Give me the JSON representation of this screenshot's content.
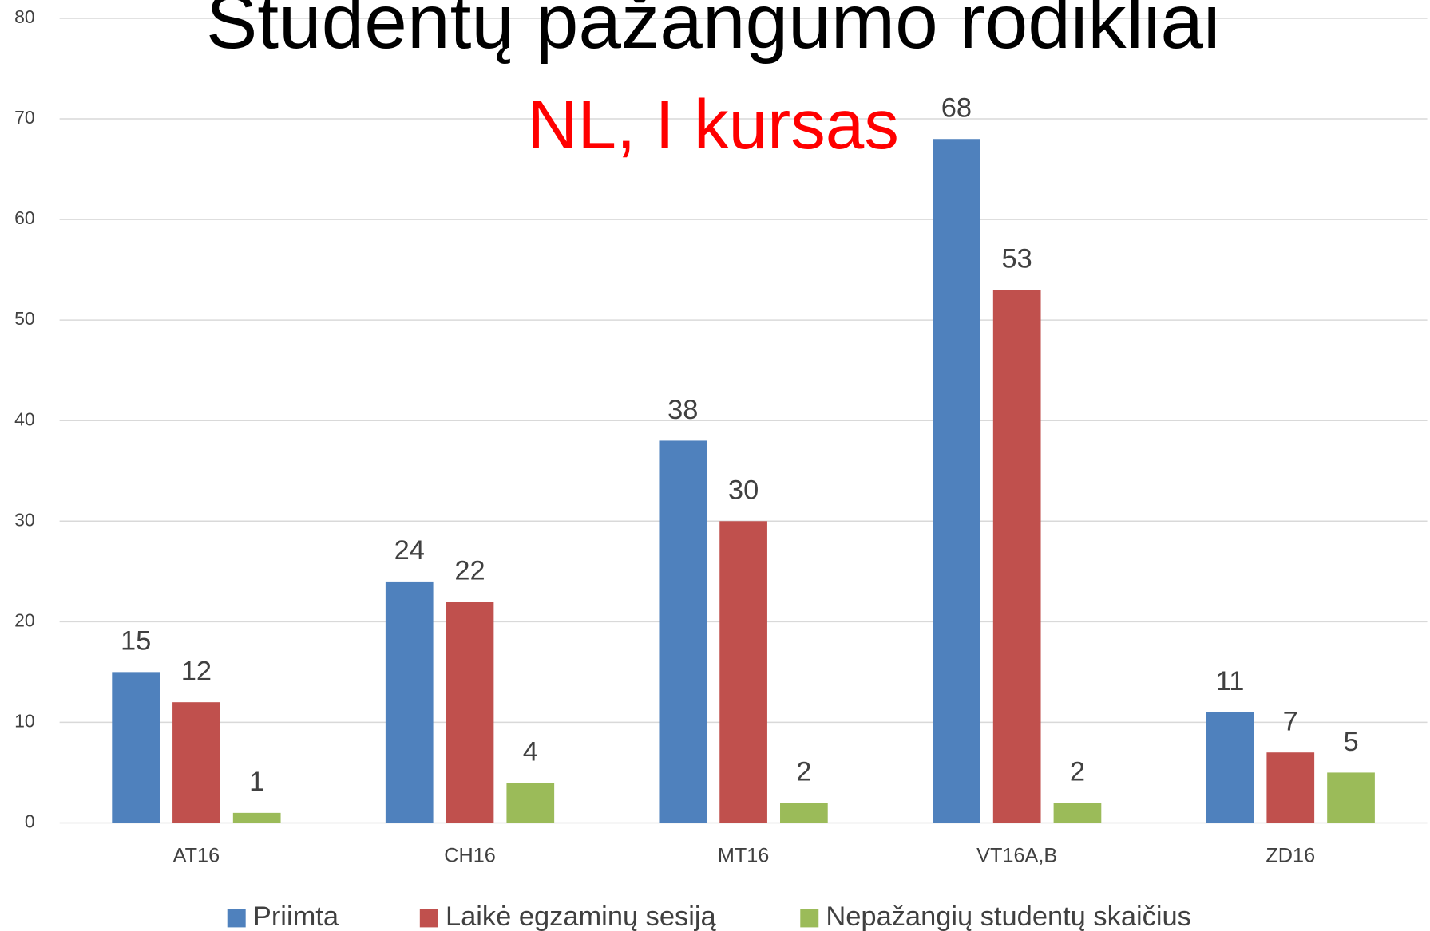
{
  "chart_data": {
    "type": "bar",
    "title": "Studentų pažangumo rodikliai",
    "subtitle": "NL, I kursas",
    "categories": [
      "AT16",
      "CH16",
      "MT16",
      "VT16A,B",
      "ZD16"
    ],
    "series": [
      {
        "name": "Priimta",
        "color": "#4f81bd",
        "values": [
          15,
          24,
          38,
          68,
          11
        ]
      },
      {
        "name": "Laikė egzaminų sesiją",
        "color": "#c0504d",
        "values": [
          12,
          22,
          30,
          53,
          7
        ]
      },
      {
        "name": "Nepažangių studentų skaičius",
        "color": "#9bbb59",
        "values": [
          1,
          4,
          2,
          2,
          5
        ]
      }
    ],
    "ylim": [
      0,
      80
    ],
    "yticks": [
      0,
      10,
      20,
      30,
      40,
      50,
      60,
      70,
      80
    ],
    "grid": true,
    "legend": "bottom"
  }
}
